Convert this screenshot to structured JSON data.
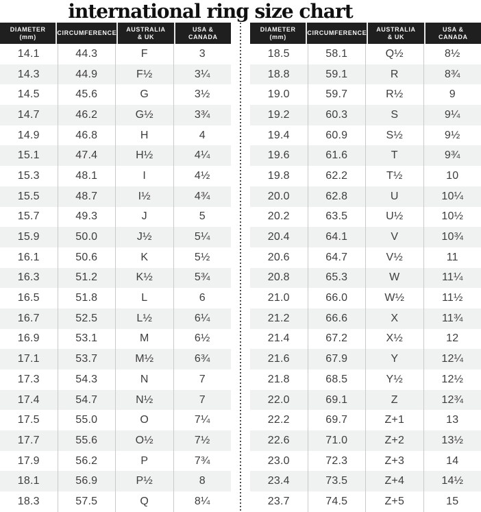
{
  "title": "international ring size chart",
  "header": {
    "columns": [
      {
        "id": "diameter",
        "lines": [
          "DIAMETER",
          "(mm)"
        ]
      },
      {
        "id": "circumference",
        "lines": [
          "CIRCUMFERENCE"
        ]
      },
      {
        "id": "australia-uk",
        "lines": [
          "AUSTRALIA",
          "& UK"
        ]
      },
      {
        "id": "usa-canada",
        "lines": [
          "USA &",
          "CANADA"
        ]
      }
    ]
  },
  "colors": {
    "header_bg": "#1f1f1f",
    "header_text": "#f5f5f5",
    "row_alt_bg": "#f0f1f1",
    "body_text": "#3d3d3d",
    "column_line": "#c9c9c9",
    "divider_dot": "#4a4a4a",
    "title_text": "#101010"
  },
  "chart_data": {
    "type": "table",
    "title": "international ring size chart",
    "columns": [
      "DIAMETER (mm)",
      "CIRCUMFERENCE",
      "AUSTRALIA & UK",
      "USA & CANADA"
    ],
    "layout": "two side-by-side tables separated by a vertical dotted line, alternating row stripes",
    "tables": [
      {
        "rows": [
          [
            "14.1",
            "44.3",
            "F",
            "3"
          ],
          [
            "14.3",
            "44.9",
            "F½",
            "3¼"
          ],
          [
            "14.5",
            "45.6",
            "G",
            "3½"
          ],
          [
            "14.7",
            "46.2",
            "G½",
            "3¾"
          ],
          [
            "14.9",
            "46.8",
            "H",
            "4"
          ],
          [
            "15.1",
            "47.4",
            "H½",
            "4¼"
          ],
          [
            "15.3",
            "48.1",
            "I",
            "4½"
          ],
          [
            "15.5",
            "48.7",
            "I½",
            "4¾"
          ],
          [
            "15.7",
            "49.3",
            "J",
            "5"
          ],
          [
            "15.9",
            "50.0",
            "J½",
            "5¼"
          ],
          [
            "16.1",
            "50.6",
            "K",
            "5½"
          ],
          [
            "16.3",
            "51.2",
            "K½",
            "5¾"
          ],
          [
            "16.5",
            "51.8",
            "L",
            "6"
          ],
          [
            "16.7",
            "52.5",
            "L½",
            "6¼"
          ],
          [
            "16.9",
            "53.1",
            "M",
            "6½"
          ],
          [
            "17.1",
            "53.7",
            "M½",
            "6¾"
          ],
          [
            "17.3",
            "54.3",
            "N",
            "7"
          ],
          [
            "17.4",
            "54.7",
            "N½",
            "7"
          ],
          [
            "17.5",
            "55.0",
            "O",
            "7¼"
          ],
          [
            "17.7",
            "55.6",
            "O½",
            "7½"
          ],
          [
            "17.9",
            "56.2",
            "P",
            "7¾"
          ],
          [
            "18.1",
            "56.9",
            "P½",
            "8"
          ],
          [
            "18.3",
            "57.5",
            "Q",
            "8¼"
          ]
        ]
      },
      {
        "rows": [
          [
            "18.5",
            "58.1",
            "Q½",
            "8½"
          ],
          [
            "18.8",
            "59.1",
            "R",
            "8¾"
          ],
          [
            "19.0",
            "59.7",
            "R½",
            "9"
          ],
          [
            "19.2",
            "60.3",
            "S",
            "9¼"
          ],
          [
            "19.4",
            "60.9",
            "S½",
            "9½"
          ],
          [
            "19.6",
            "61.6",
            "T",
            "9¾"
          ],
          [
            "19.8",
            "62.2",
            "T½",
            "10"
          ],
          [
            "20.0",
            "62.8",
            "U",
            "10¼"
          ],
          [
            "20.2",
            "63.5",
            "U½",
            "10½"
          ],
          [
            "20.4",
            "64.1",
            "V",
            "10¾"
          ],
          [
            "20.6",
            "64.7",
            "V½",
            "11"
          ],
          [
            "20.8",
            "65.3",
            "W",
            "11¼"
          ],
          [
            "21.0",
            "66.0",
            "W½",
            "11½"
          ],
          [
            "21.2",
            "66.6",
            "X",
            "11¾"
          ],
          [
            "21.4",
            "67.2",
            "X½",
            "12"
          ],
          [
            "21.6",
            "67.9",
            "Y",
            "12¼"
          ],
          [
            "21.8",
            "68.5",
            "Y½",
            "12½"
          ],
          [
            "22.0",
            "69.1",
            "Z",
            "12¾"
          ],
          [
            "22.2",
            "69.7",
            "Z+1",
            "13"
          ],
          [
            "22.6",
            "71.0",
            "Z+2",
            "13½"
          ],
          [
            "23.0",
            "72.3",
            "Z+3",
            "14"
          ],
          [
            "23.4",
            "73.5",
            "Z+4",
            "14½"
          ],
          [
            "23.7",
            "74.5",
            "Z+5",
            "15"
          ]
        ]
      }
    ]
  }
}
